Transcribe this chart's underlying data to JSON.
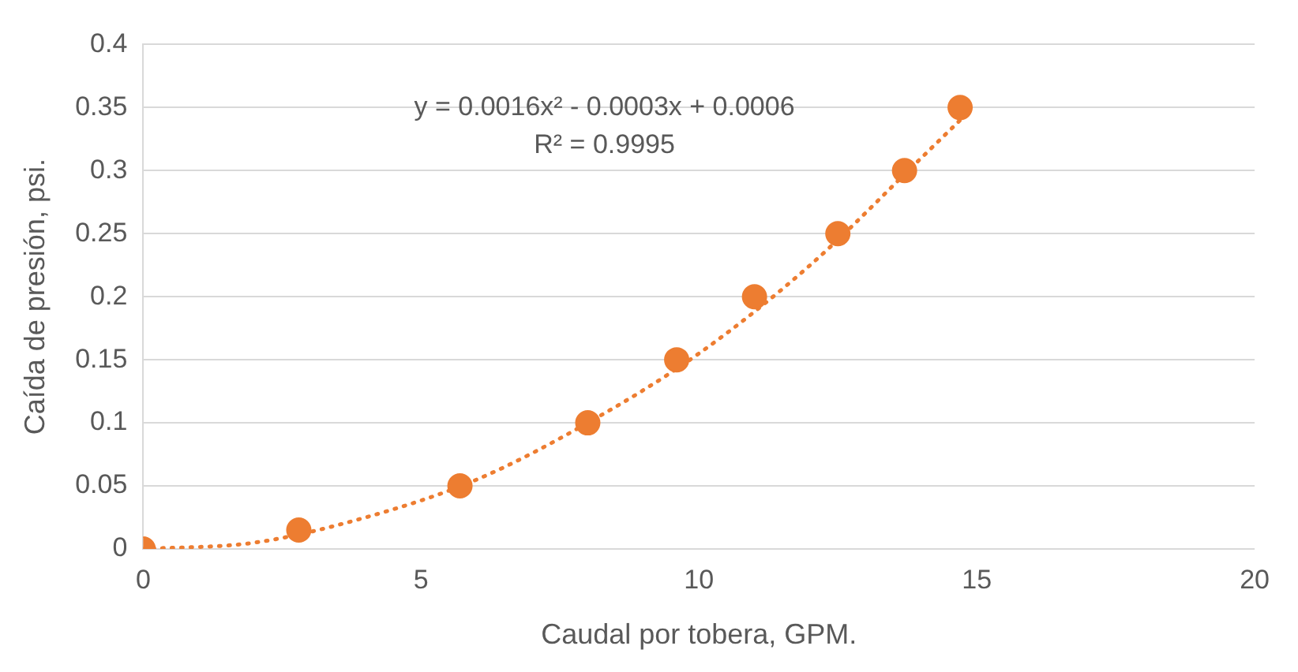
{
  "chart_data": {
    "type": "scatter",
    "xlabel": "Caudal por tobera, GPM.",
    "ylabel": "Caída de presión, psi.",
    "xlim": [
      0,
      20
    ],
    "xticks": [
      0,
      5,
      10,
      15,
      20
    ],
    "ylim": [
      0,
      0.4
    ],
    "yticks": [
      0,
      0.05,
      0.1,
      0.15,
      0.2,
      0.25,
      0.3,
      0.35,
      0.4
    ],
    "grid": "y",
    "legend": false,
    "annotations": [
      "y = 0.0016x² - 0.0003x + 0.0006",
      "R² = 0.9995"
    ],
    "series": [
      {
        "type": "line",
        "color": "#ed7d31",
        "line_style": "dotted",
        "marker": "none",
        "x": [
          0,
          2,
          4,
          6,
          8,
          10,
          12,
          14,
          14.7
        ],
        "values": [
          0,
          0.005,
          0.025,
          0.055,
          0.1,
          0.155,
          0.225,
          0.31,
          0.34
        ]
      },
      {
        "type": "scatter",
        "color": "#ed7d31",
        "marker": "circle",
        "x": [
          0,
          2.8,
          5.7,
          8.0,
          9.6,
          11.0,
          12.5,
          13.7,
          14.7
        ],
        "values": [
          0,
          0.015,
          0.05,
          0.1,
          0.15,
          0.2,
          0.25,
          0.3,
          0.35
        ]
      }
    ]
  }
}
